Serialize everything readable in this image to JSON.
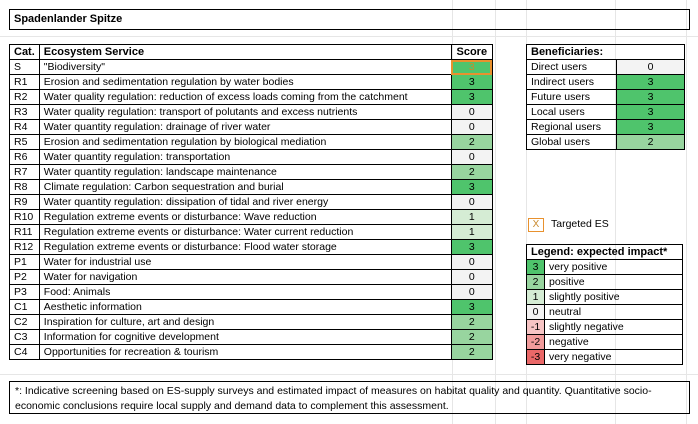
{
  "title": "Spadenlander Spitze",
  "colors": {
    "3": "#4fc46c",
    "2": "#98d59f",
    "1": "#d5ecd4",
    "0": "#f3f3f3",
    "-1": "#f6c4c4",
    "-2": "#f19b9b",
    "-3": "#ea6868",
    "targeted_border": "#e8912e"
  },
  "services": {
    "headers": {
      "cat": "Cat.",
      "service": "Ecosystem Service",
      "score": "Score"
    },
    "rows": [
      {
        "cat": "S",
        "service": "\"Biodiversity\"",
        "score": "3",
        "targeted": true
      },
      {
        "cat": "R1",
        "service": "Erosion and sedimentation regulation by water bodies",
        "score": "3"
      },
      {
        "cat": "R2",
        "service": "Water quality regulation: reduction of excess loads coming from the catchment",
        "score": "3"
      },
      {
        "cat": "R3",
        "service": "Water quality regulation: transport of polutants and excess nutrients",
        "score": "0"
      },
      {
        "cat": "R4",
        "service": "Water quantity regulation: drainage of river water",
        "score": "0"
      },
      {
        "cat": "R5",
        "service": "Erosion and sedimentation regulation by biological mediation",
        "score": "2"
      },
      {
        "cat": "R6",
        "service": "Water quantity regulation: transportation",
        "score": "0"
      },
      {
        "cat": "R7",
        "service": "Water quantity regulation: landscape maintenance",
        "score": "2"
      },
      {
        "cat": "R8",
        "service": "Climate regulation: Carbon sequestration and burial",
        "score": "3"
      },
      {
        "cat": "R9",
        "service": "Water quantity regulation: dissipation of tidal and river energy",
        "score": "0"
      },
      {
        "cat": "R10",
        "service": "Regulation extreme events or disturbance: Wave reduction",
        "score": "1"
      },
      {
        "cat": "R11",
        "service": "Regulation extreme events or disturbance: Water current reduction",
        "score": "1"
      },
      {
        "cat": "R12",
        "service": "Regulation extreme events or disturbance: Flood water storage",
        "score": "3"
      },
      {
        "cat": "P1",
        "service": "Water for industrial use",
        "score": "0"
      },
      {
        "cat": "P2",
        "service": "Water for navigation",
        "score": "0"
      },
      {
        "cat": "P3",
        "service": "Food: Animals",
        "score": "0"
      },
      {
        "cat": "C1",
        "service": "Aesthetic information",
        "score": "3"
      },
      {
        "cat": "C2",
        "service": "Inspiration for culture, art and design",
        "score": "2"
      },
      {
        "cat": "C3",
        "service": "Information for cognitive development",
        "score": "2"
      },
      {
        "cat": "C4",
        "service": "Opportunities for recreation & tourism",
        "score": "2"
      }
    ]
  },
  "beneficiaries": {
    "header": "Beneficiaries:",
    "rows": [
      {
        "name": "Direct users",
        "score": "0"
      },
      {
        "name": "Indirect users",
        "score": "3"
      },
      {
        "name": "Future users",
        "score": "3"
      },
      {
        "name": "Local users",
        "score": "3"
      },
      {
        "name": "Regional users",
        "score": "3"
      },
      {
        "name": "Global users",
        "score": "2"
      }
    ]
  },
  "targeted": {
    "symbol": "X",
    "label": "Targeted ES"
  },
  "legend": {
    "header": "Legend: expected impact*",
    "rows": [
      {
        "value": "3",
        "label": "very positive"
      },
      {
        "value": "2",
        "label": "positive"
      },
      {
        "value": "1",
        "label": "slightly positive"
      },
      {
        "value": "0",
        "label": "neutral"
      },
      {
        "value": "-1",
        "label": "slightly negative"
      },
      {
        "value": "-2",
        "label": "negative"
      },
      {
        "value": "-3",
        "label": "very negative"
      }
    ]
  },
  "footnote": "*: Indicative screening based on ES-supply surveys and estimated impact of measures on habitat quality and quantity. Quantitative socio-economic conclusions require local supply and demand data to complement this assessment."
}
